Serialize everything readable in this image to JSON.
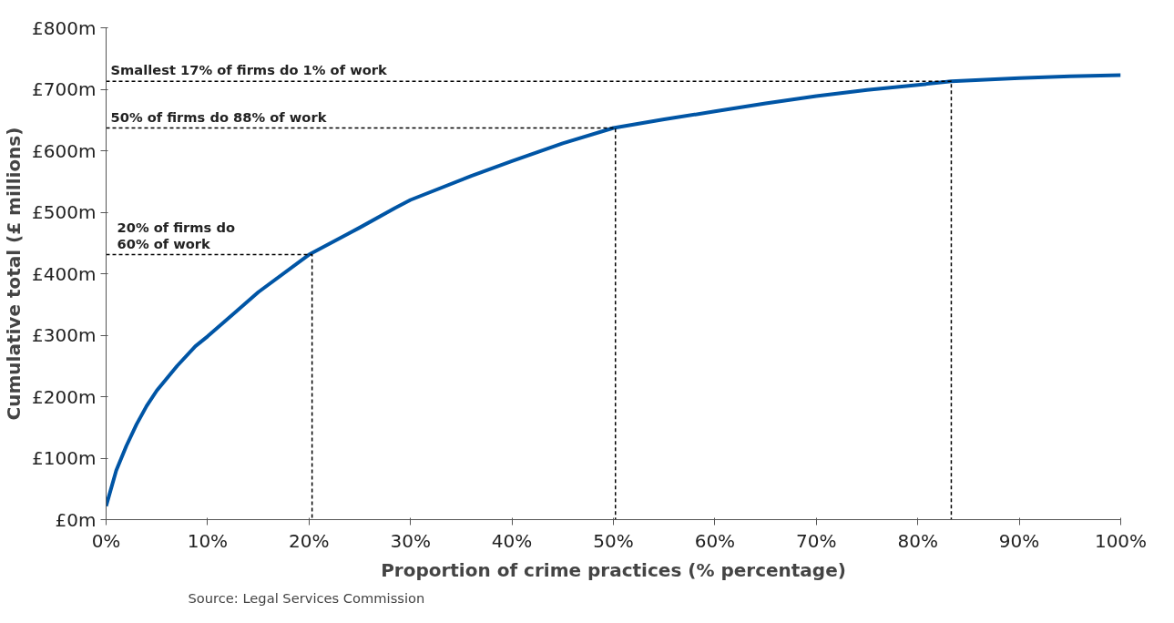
{
  "chart_data": {
    "type": "line",
    "xlabel": "Proportion of crime practices (% percentage)",
    "ylabel": "Cumulative total (£ millions)",
    "xlim": [
      0,
      100
    ],
    "ylim": [
      0,
      800
    ],
    "xticks": [
      {
        "value": 0,
        "label": "0%"
      },
      {
        "value": 10,
        "label": "10%"
      },
      {
        "value": 20,
        "label": "20%"
      },
      {
        "value": 30,
        "label": "30%"
      },
      {
        "value": 40,
        "label": "40%"
      },
      {
        "value": 50,
        "label": "50%"
      },
      {
        "value": 60,
        "label": "60%"
      },
      {
        "value": 70,
        "label": "70%"
      },
      {
        "value": 80,
        "label": "80%"
      },
      {
        "value": 90,
        "label": "90%"
      },
      {
        "value": 100,
        "label": "100%"
      }
    ],
    "yticks": [
      {
        "value": 0,
        "label": "£0m"
      },
      {
        "value": 100,
        "label": "£100m"
      },
      {
        "value": 200,
        "label": "£200m"
      },
      {
        "value": 300,
        "label": "£300m"
      },
      {
        "value": 400,
        "label": "£400m"
      },
      {
        "value": 500,
        "label": "£500m"
      },
      {
        "value": 600,
        "label": "£600m"
      },
      {
        "value": 700,
        "label": "£700m"
      },
      {
        "value": 800,
        "label": "£800m"
      }
    ],
    "grid": false,
    "marker": "none",
    "series": [
      {
        "color": "#0055a5",
        "line_style": "solid",
        "x": [
          0,
          1,
          2,
          3,
          4,
          5,
          7,
          8.8,
          10,
          15,
          20,
          25,
          28.5,
          30,
          36,
          40,
          45,
          50,
          55,
          60,
          65,
          70,
          75,
          80,
          83.3,
          90,
          95,
          100
        ],
        "values": [
          22,
          80,
          120,
          155,
          185,
          210,
          250,
          282,
          298,
          370,
          431,
          475,
          507,
          520,
          559,
          583,
          612,
          637,
          651,
          664,
          677,
          689,
          699,
          707,
          713,
          718,
          721,
          723
        ]
      },
      {
        "color": "#000000",
        "line_style": "dashed",
        "x": [
          0,
          83.3,
          83.3
        ],
        "values": [
          713,
          713,
          0
        ]
      },
      {
        "color": "#000000",
        "line_style": "dashed",
        "x": [
          0,
          50.2,
          50.2
        ],
        "values": [
          637,
          637,
          0
        ]
      },
      {
        "color": "#000000",
        "line_style": "dashed",
        "x": [
          0,
          20.3,
          20.3
        ],
        "values": [
          431,
          431,
          0
        ]
      }
    ],
    "annotations": [
      "Smallest 17% of firms do 1% of work",
      "50% of firms do 88% of work",
      "20% of firms do\n60% of work",
      "Source: Legal Services Commission"
    ]
  }
}
